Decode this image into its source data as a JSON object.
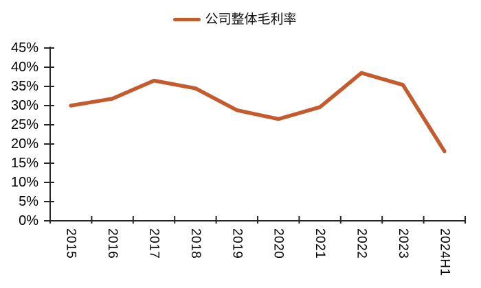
{
  "legend": {
    "label": "公司整体毛利率"
  },
  "chart_data": {
    "type": "line",
    "title": "",
    "xlabel": "",
    "ylabel": "",
    "categories": [
      "2015",
      "2016",
      "2017",
      "2018",
      "2019",
      "2020",
      "2021",
      "2022",
      "2023",
      "2024H1"
    ],
    "series": [
      {
        "name": "公司整体毛利率",
        "color": "#C55A2D",
        "values": [
          30.0,
          31.8,
          36.5,
          34.5,
          28.8,
          26.5,
          29.6,
          38.5,
          35.4,
          18.1
        ]
      }
    ],
    "ylim": [
      0,
      45
    ],
    "ytick_step": 5,
    "ytick_labels": [
      "0%",
      "5%",
      "10%",
      "15%",
      "20%",
      "25%",
      "30%",
      "35%",
      "40%",
      "45%"
    ],
    "grid": false,
    "legend_position": "top-center",
    "axis_color": "#262626",
    "label_color": "#000000"
  }
}
